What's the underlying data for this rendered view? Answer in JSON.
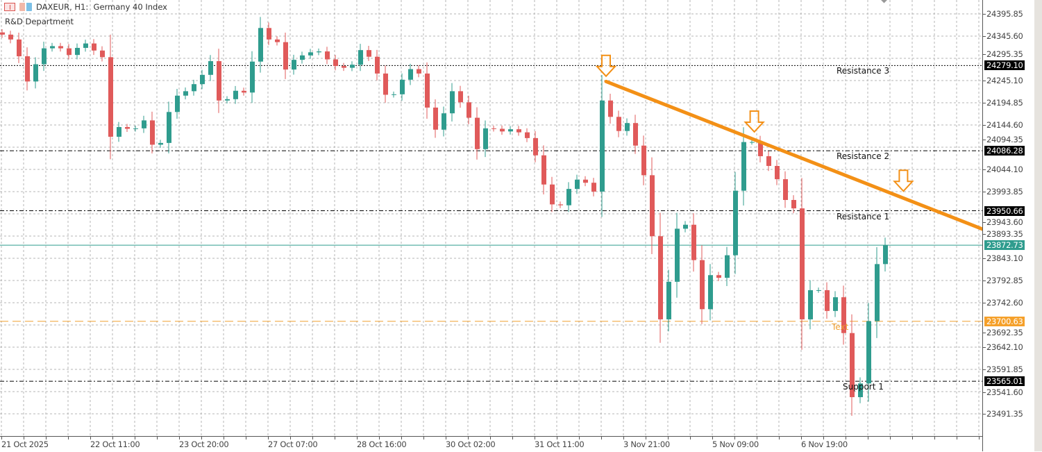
{
  "header": {
    "title": "DAXEUR, H1:  Germany 40 Index",
    "subtitle": "R&D Department",
    "icons": [
      "market-watch-icon",
      "chart-pair-icon"
    ]
  },
  "chart_data": {
    "type": "candlestick",
    "timeframe": "H1",
    "symbol": "DAXEUR",
    "colors": {
      "bull": "#2f9c8e",
      "bear": "#e05a5a",
      "trend": "#f39016",
      "current": "#2f9c8e",
      "text_line": "#f0a030",
      "grid": "#b4b4b4"
    },
    "ylim": [
      23441.1,
      24427.3
    ],
    "grid": true,
    "closes": [
      24349,
      24338,
      24300,
      24243,
      24282,
      24318,
      24323,
      24318,
      24303,
      24319,
      24329,
      24313,
      24298,
      24118,
      24140,
      24136,
      24137,
      24155,
      24100,
      24104,
      24174,
      24211,
      24221,
      24237,
      24258,
      24289,
      24200,
      24203,
      24222,
      24218,
      24288,
      24364,
      24338,
      24332,
      24270,
      24292,
      24302,
      24309,
      24311,
      24293,
      24278,
      24274,
      24281,
      24314,
      24299,
      24261,
      24213,
      24214,
      24247,
      24271,
      24261,
      24184,
      24134,
      24171,
      24221,
      24196,
      24161,
      24090,
      24137,
      24136,
      24130,
      24135,
      24128,
      24115,
      24076,
      24010,
      23965,
      23963,
      24000,
      24021,
      24014,
      23994,
      24200,
      24163,
      24131,
      24149,
      24098,
      24031,
      23893,
      23705,
      23790,
      23910,
      23919,
      23839,
      23728,
      23805,
      23799,
      23850,
      23996,
      24106,
      24106,
      24074,
      24052,
      24022,
      23975,
      23956,
      23705,
      23771,
      23771,
      23724,
      23755,
      23674,
      23529,
      23560,
      23701,
      23830,
      23873
    ],
    "y_ticks": [
      "24395.85",
      "24345.60",
      "24295.35",
      "24245.10",
      "24194.85",
      "24144.60",
      "24094.35",
      "24044.10",
      "23993.85",
      "23943.60",
      "23893.35",
      "23843.10",
      "23792.85",
      "23742.60",
      "23692.35",
      "23642.10",
      "23591.85",
      "23541.60",
      "23491.35"
    ],
    "x_tick_labels": [
      "21 Oct 2025",
      "22 Oct 11:00",
      "23 Oct 20:00",
      "27 Oct 07:00",
      "28 Oct 16:00",
      "30 Oct 02:00",
      "31 Oct 11:00",
      "3 Nov 21:00",
      "5 Nov 09:00",
      "6 Nov 19:00"
    ],
    "levels": [
      {
        "name": "Resistance 3",
        "price": "24279.10",
        "style": "dotted"
      },
      {
        "name": "Resistance 2",
        "price": "24086.28",
        "style": "dashdot"
      },
      {
        "name": "Resistance 1",
        "price": "23950.66",
        "style": "dashdot"
      },
      {
        "name": "Support 1",
        "price": "23565.01",
        "style": "dashdot"
      }
    ],
    "current_price": "23872.73",
    "text_line": {
      "label": "Text",
      "price": "23700.63"
    },
    "trendline": {
      "from": {
        "bar": 72.5,
        "price": 24243
      },
      "to": {
        "bar": 117.7,
        "price": 23909
      }
    },
    "arrows": [
      {
        "bar": 72.5,
        "price": 24255
      },
      {
        "bar": 90.3,
        "price": 24129
      },
      {
        "bar": 108.2,
        "price": 23995
      }
    ]
  }
}
